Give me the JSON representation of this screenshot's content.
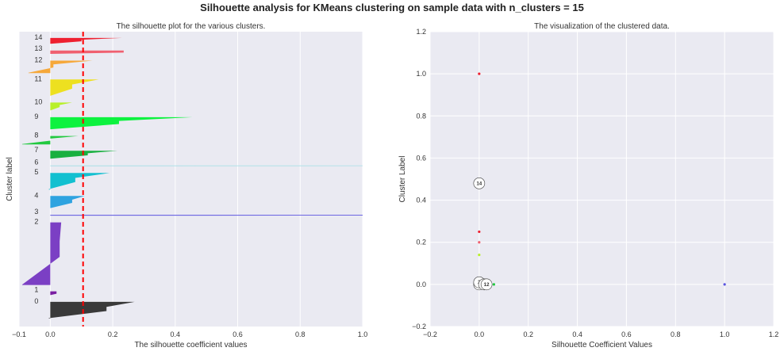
{
  "suptitle": "Silhouette analysis for KMeans clustering on sample data with n_clusters = 15",
  "chart_data": [
    {
      "type": "area",
      "title": "The silhouette plot for the various clusters.",
      "xlabel": "The silhouette coefficient values",
      "ylabel": "Cluster label",
      "xlim": [
        -0.1,
        1.0
      ],
      "xticks": [
        -0.1,
        0.0,
        0.2,
        0.4,
        0.6,
        0.8,
        1.0
      ],
      "xtick_labels": [
        "−0.1",
        "0.0",
        "0.2",
        "0.4",
        "0.6",
        "0.8",
        "1.0"
      ],
      "grid": true,
      "average_silhouette_score": 0.105,
      "average_line_color": "#ff0000",
      "clusters": [
        {
          "label": "0",
          "color": "#3a3a3a",
          "min": -0.005,
          "max": 0.27,
          "body": 0.18,
          "size": 4
        },
        {
          "label": "1",
          "color": "#7a1fa2",
          "min": 0.0,
          "max": 0.02,
          "body": 0.02,
          "size": 1
        },
        {
          "label": "2",
          "color": "#7b3fc4",
          "min": -0.09,
          "max": 0.035,
          "body": 0.03,
          "size": 15
        },
        {
          "label": "3",
          "color": "#5a54e0",
          "min": 0.0,
          "max": 1.0,
          "body": 1.0,
          "size": 0.3
        },
        {
          "label": "4",
          "color": "#2ea3e0",
          "min": 0.0,
          "max": 0.11,
          "body": 0.07,
          "size": 3
        },
        {
          "label": "5",
          "color": "#12c0d0",
          "min": -0.005,
          "max": 0.19,
          "body": 0.08,
          "size": 4
        },
        {
          "label": "6",
          "color": "#a7dfe6",
          "min": 0.0,
          "max": 1.0,
          "body": 1.0,
          "size": 0.25
        },
        {
          "label": "7",
          "color": "#19b040",
          "min": 0.0,
          "max": 0.215,
          "body": 0.12,
          "size": 2
        },
        {
          "label": "8",
          "color": "#22c940",
          "min": -0.09,
          "max": 0.09,
          "body": 0.0,
          "size": 2
        },
        {
          "label": "9",
          "color": "#0df23f",
          "min": 0.0,
          "max": 0.455,
          "body": 0.22,
          "size": 3
        },
        {
          "label": "10",
          "color": "#b8f02a",
          "min": 0.0,
          "max": 0.07,
          "body": 0.03,
          "size": 2
        },
        {
          "label": "11",
          "color": "#ede020",
          "min": 0.0,
          "max": 0.155,
          "body": 0.07,
          "size": 4
        },
        {
          "label": "12",
          "color": "#f6a83a",
          "min": -0.07,
          "max": 0.135,
          "body": 0.01,
          "size": 3
        },
        {
          "label": "13",
          "color": "#f06070",
          "min": 0.0,
          "max": 0.235,
          "body": 0.235,
          "size": 0.9
        },
        {
          "label": "14",
          "color": "#ee2030",
          "min": 0.0,
          "max": 0.23,
          "body": 0.1,
          "size": 1.5
        }
      ]
    },
    {
      "type": "scatter",
      "title": "The visualization of the clustered data.",
      "xlabel": "Silhouette Coefficient Values",
      "ylabel": "Cluster Label",
      "xlim": [
        -0.2,
        1.2
      ],
      "ylim": [
        -0.2,
        1.2
      ],
      "xticks": [
        -0.2,
        0.0,
        0.2,
        0.4,
        0.6,
        0.8,
        1.0,
        1.2
      ],
      "xtick_labels": [
        "−0.2",
        "0.0",
        "0.2",
        "0.4",
        "0.6",
        "0.8",
        "1.0",
        "1.2"
      ],
      "yticks": [
        -0.2,
        0.0,
        0.2,
        0.4,
        0.6,
        0.8,
        1.0,
        1.2
      ],
      "ytick_labels": [
        "−0.2",
        "0.0",
        "0.2",
        "0.4",
        "0.6",
        "0.8",
        "1.0",
        "1.2"
      ],
      "grid": true,
      "points": [
        {
          "x": 0.0,
          "y": 1.0,
          "color": "#ee2030"
        },
        {
          "x": 0.0,
          "y": 0.25,
          "color": "#ee2030"
        },
        {
          "x": 0.0,
          "y": 0.2,
          "color": "#f06070"
        },
        {
          "x": 0.0,
          "y": 0.14,
          "color": "#b8f02a"
        },
        {
          "x": 0.0,
          "y": 0.0,
          "color": "#0a0a5a"
        },
        {
          "x": 0.01,
          "y": 0.0,
          "color": "#0a0a5a"
        },
        {
          "x": 0.02,
          "y": 0.0,
          "color": "#0a0a5a"
        },
        {
          "x": 0.06,
          "y": 0.0,
          "color": "#22c940"
        },
        {
          "x": 1.0,
          "y": 0.0,
          "color": "#5a54e0"
        }
      ],
      "centers": [
        {
          "x": 0.0,
          "y": 0.48,
          "label": "14"
        },
        {
          "x": 0.0,
          "y": 0.0,
          "label": "0"
        },
        {
          "x": 0.0,
          "y": 0.01,
          "label": "2"
        },
        {
          "x": 0.02,
          "y": 0.0,
          "label": "4"
        },
        {
          "x": 0.03,
          "y": 0.0,
          "label": "12"
        }
      ]
    }
  ]
}
